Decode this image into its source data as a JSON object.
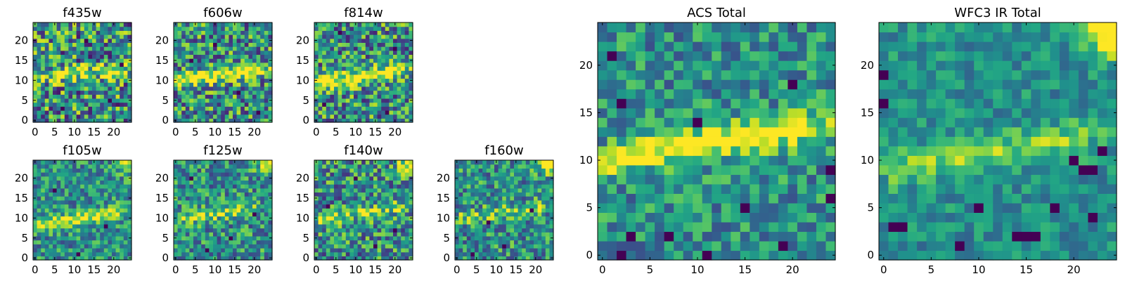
{
  "chart_data": [
    {
      "type": "heatmap",
      "title": "f435w",
      "xlim": [
        0,
        24
      ],
      "ylim": [
        0,
        24
      ],
      "xticks": [
        "0",
        "5",
        "10",
        "15",
        "20"
      ],
      "yticks": [
        "0",
        "5",
        "10",
        "15",
        "20"
      ],
      "seed": 11,
      "band": {
        "y_left": 11,
        "y_right": 13,
        "strength": 0.35
      },
      "glow": null,
      "noise": 0.55,
      "dark_spots": [
        [
          7,
          3
        ],
        [
          19,
          5
        ],
        [
          13,
          20
        ],
        [
          22,
          14
        ]
      ]
    },
    {
      "type": "heatmap",
      "title": "f606w",
      "xlim": [
        0,
        24
      ],
      "ylim": [
        0,
        24
      ],
      "xticks": [
        "0",
        "5",
        "10",
        "15",
        "20"
      ],
      "yticks": [
        "0",
        "5",
        "10",
        "15",
        "20"
      ],
      "seed": 23,
      "band": {
        "y_left": 10,
        "y_right": 13,
        "strength": 0.6
      },
      "glow": null,
      "noise": 0.5,
      "dark_spots": [
        [
          10,
          19
        ],
        [
          4,
          15
        ],
        [
          21,
          2
        ],
        [
          16,
          7
        ]
      ]
    },
    {
      "type": "heatmap",
      "title": "f814w",
      "xlim": [
        0,
        24
      ],
      "ylim": [
        0,
        24
      ],
      "xticks": [
        "0",
        "5",
        "10",
        "15",
        "20"
      ],
      "yticks": [
        "0",
        "5",
        "10",
        "15",
        "20"
      ],
      "seed": 37,
      "band": {
        "y_left": 9,
        "y_right": 13,
        "strength": 0.6
      },
      "glow": null,
      "noise": 0.5,
      "dark_spots": [
        [
          6,
          22
        ],
        [
          18,
          2
        ],
        [
          2,
          4
        ],
        [
          20,
          18
        ]
      ]
    },
    {
      "type": "heatmap",
      "title": "f105w",
      "xlim": [
        0,
        24
      ],
      "ylim": [
        0,
        24
      ],
      "xticks": [
        "0",
        "5",
        "10",
        "15",
        "20"
      ],
      "yticks": [
        "0",
        "5",
        "10",
        "15",
        "20"
      ],
      "seed": 41,
      "band": {
        "y_left": 8,
        "y_right": 12,
        "strength": 0.45
      },
      "glow": {
        "x": 24,
        "y": 24,
        "strength": 0.4
      },
      "noise": 0.35,
      "dark_spots": [
        [
          11,
          1
        ],
        [
          18,
          8
        ],
        [
          5,
          17
        ]
      ]
    },
    {
      "type": "heatmap",
      "title": "f125w",
      "xlim": [
        0,
        24
      ],
      "ylim": [
        0,
        24
      ],
      "xticks": [
        "0",
        "5",
        "10",
        "15",
        "20"
      ],
      "yticks": [
        "0",
        "5",
        "10",
        "15",
        "20"
      ],
      "seed": 53,
      "band": {
        "y_left": 10,
        "y_right": 13,
        "strength": 0.3
      },
      "glow": {
        "x": 24,
        "y": 24,
        "strength": 0.7
      },
      "noise": 0.4,
      "dark_spots": [
        [
          4,
          20
        ],
        [
          14,
          5
        ],
        [
          20,
          11
        ],
        [
          8,
          2
        ]
      ]
    },
    {
      "type": "heatmap",
      "title": "f140w",
      "xlim": [
        0,
        24
      ],
      "ylim": [
        0,
        24
      ],
      "xticks": [
        "0",
        "5",
        "10",
        "15",
        "20"
      ],
      "yticks": [
        "0",
        "5",
        "10",
        "15",
        "20"
      ],
      "seed": 67,
      "band": {
        "y_left": 10,
        "y_right": 13,
        "strength": 0.3
      },
      "glow": {
        "x": 24,
        "y": 24,
        "strength": 0.7
      },
      "noise": 0.45,
      "dark_spots": [
        [
          15,
          3
        ],
        [
          20,
          7
        ],
        [
          10,
          20
        ],
        [
          3,
          13
        ]
      ]
    },
    {
      "type": "heatmap",
      "title": "f160w",
      "xlim": [
        0,
        24
      ],
      "ylim": [
        0,
        24
      ],
      "xticks": [
        "0",
        "5",
        "10",
        "15",
        "20"
      ],
      "yticks": [
        "0",
        "5",
        "10",
        "15",
        "20"
      ],
      "seed": 79,
      "band": {
        "y_left": 10,
        "y_right": 13,
        "strength": 0.25
      },
      "glow": {
        "x": 24,
        "y": 24,
        "strength": 0.75
      },
      "noise": 0.4,
      "dark_spots": [
        [
          4,
          1
        ],
        [
          8,
          9
        ],
        [
          12,
          3
        ],
        [
          19,
          12
        ]
      ]
    },
    {
      "type": "heatmap",
      "title": "ACS Total",
      "xlim": [
        0,
        24
      ],
      "ylim": [
        0,
        24
      ],
      "xticks": [
        "0",
        "5",
        "10",
        "15",
        "20"
      ],
      "yticks": [
        "0",
        "5",
        "10",
        "15",
        "20"
      ],
      "seed": 97,
      "band": {
        "y_left": 10,
        "y_right": 14,
        "strength": 0.55
      },
      "glow": null,
      "noise": 0.32,
      "dark_spots": [
        [
          1,
          21
        ],
        [
          2,
          0
        ],
        [
          3,
          2
        ],
        [
          11,
          0
        ],
        [
          19,
          1
        ],
        [
          20,
          18
        ],
        [
          24,
          9
        ],
        [
          24,
          6
        ],
        [
          7,
          2
        ],
        [
          10,
          14
        ],
        [
          15,
          5
        ],
        [
          2,
          16
        ]
      ]
    },
    {
      "type": "heatmap",
      "title": "WFC3 IR Total",
      "xlim": [
        0,
        24
      ],
      "ylim": [
        0,
        24
      ],
      "xticks": [
        "0",
        "5",
        "10",
        "15",
        "20"
      ],
      "yticks": [
        "0",
        "5",
        "10",
        "15",
        "20"
      ],
      "seed": 131,
      "band": {
        "y_left": 9,
        "y_right": 13,
        "strength": 0.3
      },
      "glow": {
        "x": 24,
        "y": 24,
        "strength": 0.8
      },
      "noise": 0.22,
      "dark_spots": [
        [
          14,
          2
        ],
        [
          15,
          2
        ],
        [
          16,
          2
        ],
        [
          8,
          1
        ],
        [
          10,
          5
        ],
        [
          21,
          9
        ],
        [
          22,
          9
        ],
        [
          20,
          10
        ],
        [
          23,
          11
        ],
        [
          0,
          19
        ],
        [
          0,
          16
        ],
        [
          1,
          3
        ],
        [
          2,
          3
        ],
        [
          22,
          4
        ],
        [
          18,
          5
        ]
      ]
    }
  ]
}
